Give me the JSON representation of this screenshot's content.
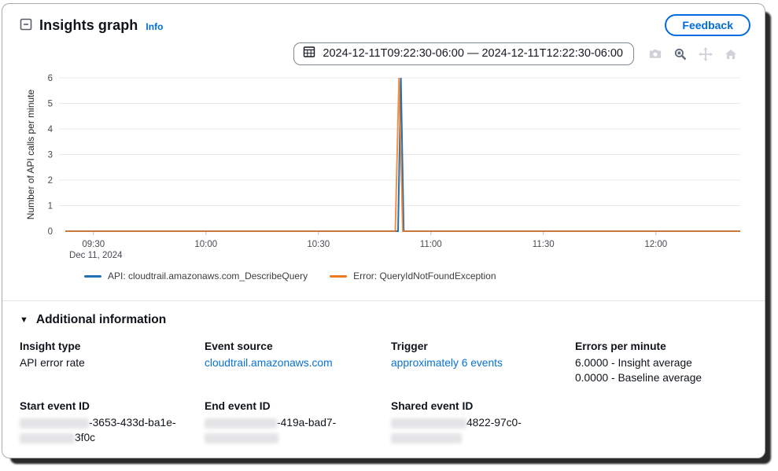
{
  "header": {
    "title": "Insights graph",
    "info_label": "Info",
    "feedback_label": "Feedback"
  },
  "chart_controls": {
    "date_range": "2024-12-11T09:22:30-06:00 — 2024-12-11T12:22:30-06:00",
    "icon_names": [
      "calendar-icon",
      "camera-icon",
      "zoom-icon",
      "pan-icon",
      "home-icon"
    ]
  },
  "chart_data": {
    "type": "line",
    "title": "",
    "xlabel": "",
    "ylabel": "Number of API calls per minute",
    "x_date_label": "Dec 11, 2024",
    "x_range": [
      "09:22:30",
      "12:22:30"
    ],
    "ylim": [
      0,
      6
    ],
    "y_ticks": [
      0,
      1,
      2,
      3,
      4,
      5,
      6
    ],
    "x_ticks": [
      "09:30",
      "10:00",
      "10:30",
      "11:00",
      "11:30",
      "12:00"
    ],
    "grid": "horizontal",
    "legend_position": "bottom",
    "series": [
      {
        "name": "API: cloudtrail.amazonaws.com_DescribeQuery",
        "color": "#2271b3",
        "points": [
          [
            "09:22:30",
            0
          ],
          [
            "10:51:15",
            0
          ],
          [
            "10:52:00",
            6
          ],
          [
            "10:52:45",
            0
          ],
          [
            "12:22:30",
            0
          ]
        ]
      },
      {
        "name": "Error: QueryIdNotFoundException",
        "color": "#f0791e",
        "points": [
          [
            "09:22:30",
            0
          ],
          [
            "10:50:30",
            0
          ],
          [
            "10:51:30",
            6
          ],
          [
            "10:52:30",
            0
          ],
          [
            "12:22:30",
            0
          ]
        ]
      }
    ]
  },
  "additional_info": {
    "section_title": "Additional information",
    "insight_type": {
      "label": "Insight type",
      "value": "API error rate"
    },
    "event_source": {
      "label": "Event source",
      "value": "cloudtrail.amazonaws.com"
    },
    "trigger": {
      "label": "Trigger",
      "value": "approximately 6 events"
    },
    "errors_per_minute": {
      "label": "Errors per minute",
      "line1": "6.0000 - Insight average",
      "line2": "0.0000 - Baseline average"
    },
    "start_event_id": {
      "label": "Start event ID",
      "visible_line1": "-3653-433d-ba1e-",
      "visible_line2": "3f0c"
    },
    "end_event_id": {
      "label": "End event ID",
      "visible_line1": "-419a-bad7-",
      "visible_line2": ""
    },
    "shared_event_id": {
      "label": "Shared event ID",
      "visible_line1": "4822-97c0-",
      "visible_line2": ""
    }
  }
}
